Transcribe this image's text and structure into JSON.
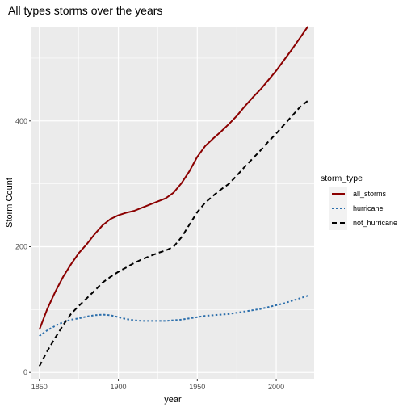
{
  "chart_data": {
    "type": "line",
    "title": "All types storms over the years",
    "xlabel": "year",
    "ylabel": "Storm Count",
    "xlim": [
      1845,
      2024
    ],
    "ylim": [
      -10,
      550
    ],
    "x_ticks": [
      1850,
      1900,
      1950,
      2000
    ],
    "y_ticks": [
      0,
      200,
      400
    ],
    "grid": true,
    "legend": {
      "title": "storm_type",
      "placement": "right"
    },
    "series": [
      {
        "name": "all_storms",
        "color": "#8B0000",
        "dash": "solid",
        "x": [
          1850,
          1855,
          1860,
          1865,
          1870,
          1875,
          1880,
          1885,
          1890,
          1895,
          1900,
          1905,
          1910,
          1915,
          1920,
          1925,
          1930,
          1935,
          1940,
          1945,
          1950,
          1955,
          1960,
          1965,
          1970,
          1975,
          1980,
          1985,
          1990,
          1995,
          2000,
          2005,
          2010,
          2015,
          2020
        ],
        "values": [
          68,
          101,
          128,
          152,
          172,
          190,
          204,
          220,
          234,
          244,
          250,
          254,
          257,
          262,
          267,
          272,
          277,
          286,
          301,
          320,
          343,
          360,
          372,
          383,
          395,
          408,
          423,
          437,
          450,
          465,
          480,
          497,
          514,
          532,
          550
        ]
      },
      {
        "name": "hurricane",
        "color": "#2B6EAB",
        "dash": "dotted",
        "x": [
          1850,
          1855,
          1860,
          1865,
          1870,
          1875,
          1880,
          1885,
          1890,
          1895,
          1900,
          1905,
          1910,
          1915,
          1920,
          1925,
          1930,
          1935,
          1940,
          1945,
          1950,
          1955,
          1960,
          1965,
          1970,
          1975,
          1980,
          1985,
          1990,
          1995,
          2000,
          2005,
          2010,
          2015,
          2020
        ],
        "values": [
          58,
          67,
          74,
          80,
          84,
          86,
          89,
          91,
          92,
          91,
          88,
          85,
          83,
          82,
          82,
          82,
          82,
          83,
          84,
          86,
          88,
          90,
          91,
          92,
          93,
          95,
          97,
          99,
          101,
          104,
          107,
          110,
          114,
          118,
          122
        ]
      },
      {
        "name": "not_hurricane",
        "color": "#000000",
        "dash": "dashed",
        "x": [
          1850,
          1855,
          1860,
          1865,
          1870,
          1875,
          1880,
          1885,
          1890,
          1895,
          1900,
          1905,
          1910,
          1915,
          1920,
          1925,
          1930,
          1935,
          1940,
          1945,
          1950,
          1955,
          1960,
          1965,
          1970,
          1975,
          1980,
          1985,
          1990,
          1995,
          2000,
          2005,
          2010,
          2015,
          2020
        ],
        "values": [
          10,
          34,
          55,
          75,
          93,
          106,
          118,
          130,
          143,
          152,
          160,
          167,
          174,
          180,
          185,
          190,
          194,
          200,
          215,
          235,
          255,
          270,
          281,
          291,
          300,
          313,
          327,
          340,
          353,
          367,
          380,
          394,
          408,
          422,
          432
        ]
      }
    ]
  }
}
